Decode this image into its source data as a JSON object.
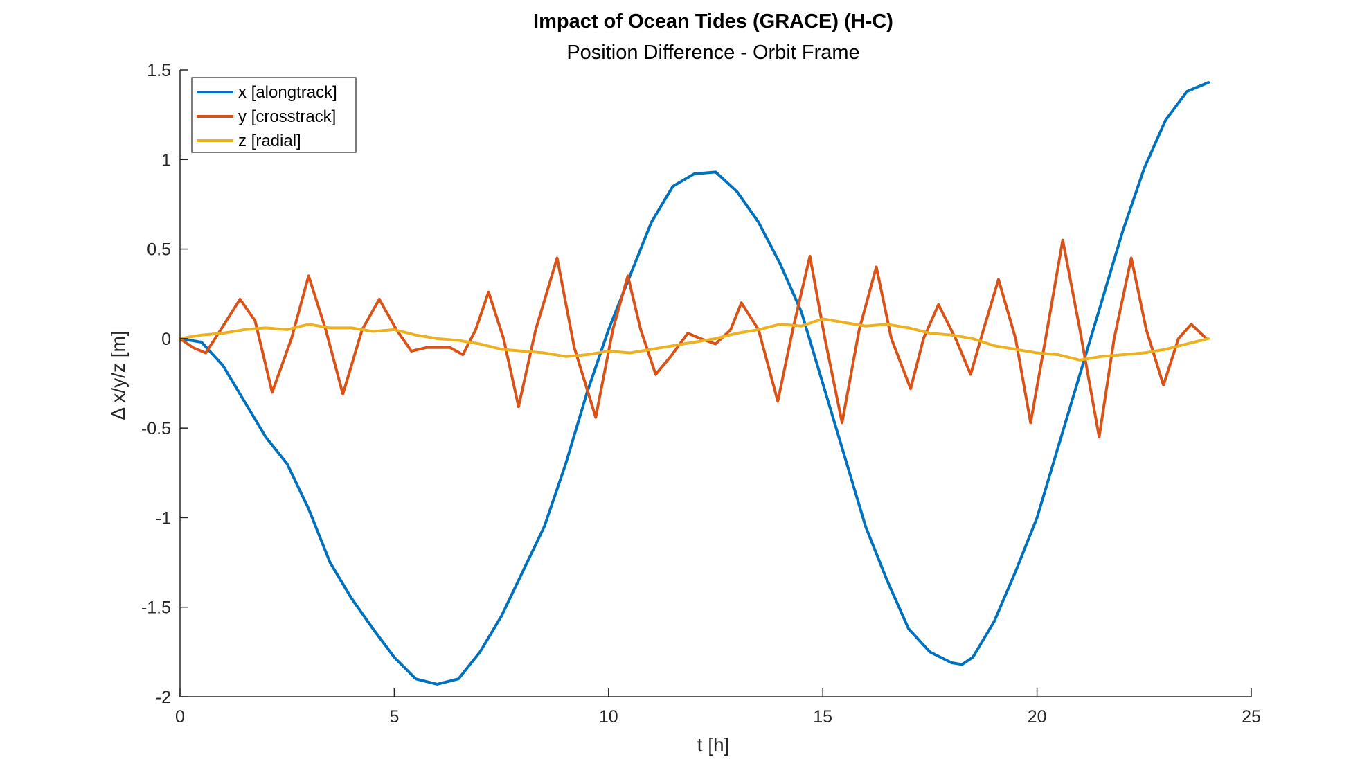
{
  "chart_data": {
    "type": "line",
    "title": "Impact of Ocean Tides (GRACE) (H-C)",
    "subtitle": "Position Difference - Orbit Frame",
    "xlabel": "t [h]",
    "ylabel": "Δ x/y/z [m]",
    "xlim": [
      0,
      25
    ],
    "ylim": [
      -2,
      1.5
    ],
    "xticks": [
      0,
      5,
      10,
      15,
      20,
      25
    ],
    "yticks": [
      -2,
      -1.5,
      -1,
      -0.5,
      0,
      0.5,
      1,
      1.5
    ],
    "xtick_labels": [
      "0",
      "5",
      "10",
      "15",
      "20",
      "25"
    ],
    "ytick_labels": [
      "-2",
      "-1.5",
      "-1",
      "-0.5",
      "0",
      "0.5",
      "1",
      "1.5"
    ],
    "grid": false,
    "legend_position": "top-left",
    "series": [
      {
        "name": "x [alongtrack]",
        "color": "#0072BD",
        "x": [
          0,
          0.5,
          1,
          1.5,
          2,
          2.5,
          3,
          3.5,
          4,
          4.5,
          5,
          5.5,
          6,
          6.5,
          7,
          7.5,
          8,
          8.5,
          9,
          9.5,
          10,
          10.5,
          11,
          11.5,
          12,
          12.5,
          13,
          13.5,
          14,
          14.5,
          15,
          15.5,
          16,
          16.5,
          17,
          17.5,
          18,
          18.25,
          18.5,
          19,
          19.5,
          20,
          20.5,
          21,
          21.5,
          22,
          22.5,
          23,
          23.5,
          24
        ],
        "y": [
          0,
          -0.02,
          -0.15,
          -0.35,
          -0.55,
          -0.7,
          -0.95,
          -1.25,
          -1.45,
          -1.62,
          -1.78,
          -1.9,
          -1.93,
          -1.9,
          -1.75,
          -1.55,
          -1.3,
          -1.05,
          -0.7,
          -0.3,
          0.05,
          0.35,
          0.65,
          0.85,
          0.92,
          0.93,
          0.82,
          0.65,
          0.42,
          0.15,
          -0.25,
          -0.65,
          -1.05,
          -1.35,
          -1.62,
          -1.75,
          -1.81,
          -1.82,
          -1.78,
          -1.58,
          -1.3,
          -1.0,
          -0.6,
          -0.2,
          0.2,
          0.6,
          0.95,
          1.22,
          1.38,
          1.43
        ]
      },
      {
        "name": "y [crosstrack]",
        "color": "#D95319",
        "x": [
          0,
          0.3,
          0.6,
          0.95,
          1.4,
          1.75,
          2.15,
          2.6,
          3.0,
          3.4,
          3.8,
          4.25,
          4.65,
          5.05,
          5.4,
          5.75,
          6.0,
          6.3,
          6.6,
          6.9,
          7.2,
          7.55,
          7.9,
          8.3,
          8.8,
          9.2,
          9.7,
          10.1,
          10.45,
          10.75,
          11.1,
          11.45,
          11.85,
          12.15,
          12.5,
          12.85,
          13.1,
          13.5,
          13.95,
          14.3,
          14.7,
          15.05,
          15.45,
          15.85,
          16.25,
          16.6,
          17.05,
          17.35,
          17.7,
          18.1,
          18.45,
          18.75,
          19.1,
          19.5,
          19.85,
          20.2,
          20.6,
          21.0,
          21.45,
          21.8,
          22.2,
          22.55,
          22.95,
          23.3,
          23.6,
          23.95
        ],
        "y": [
          0,
          -0.05,
          -0.08,
          0.05,
          0.22,
          0.1,
          -0.3,
          0.0,
          0.35,
          0.05,
          -0.31,
          0.05,
          0.22,
          0.05,
          -0.07,
          -0.05,
          -0.05,
          -0.05,
          -0.09,
          0.05,
          0.26,
          0.0,
          -0.38,
          0.05,
          0.45,
          -0.05,
          -0.44,
          0.05,
          0.35,
          0.05,
          -0.2,
          -0.1,
          0.03,
          0.0,
          -0.03,
          0.05,
          0.2,
          0.05,
          -0.35,
          0.05,
          0.46,
          0.0,
          -0.47,
          0.05,
          0.4,
          0.0,
          -0.28,
          0.0,
          0.19,
          0.0,
          -0.2,
          0.05,
          0.33,
          0.0,
          -0.47,
          0.0,
          0.55,
          0.05,
          -0.55,
          0.0,
          0.45,
          0.05,
          -0.26,
          0.0,
          0.08,
          0.0
        ]
      },
      {
        "name": "z [radial]",
        "color": "#EDB120",
        "x": [
          0,
          0.5,
          1,
          1.5,
          2,
          2.5,
          3,
          3.5,
          4,
          4.5,
          5,
          5.5,
          6,
          6.5,
          7,
          7.5,
          8,
          8.5,
          9,
          9.5,
          10,
          10.5,
          11,
          11.5,
          12,
          12.5,
          13,
          13.5,
          14,
          14.5,
          15,
          15.5,
          16,
          16.5,
          17,
          17.5,
          18,
          18.5,
          19,
          19.5,
          20,
          20.5,
          21,
          21.5,
          22,
          22.5,
          23,
          23.5,
          24
        ],
        "y": [
          0,
          0.02,
          0.03,
          0.05,
          0.06,
          0.05,
          0.08,
          0.06,
          0.06,
          0.04,
          0.05,
          0.02,
          0.0,
          -0.01,
          -0.03,
          -0.06,
          -0.07,
          -0.08,
          -0.1,
          -0.09,
          -0.07,
          -0.08,
          -0.06,
          -0.04,
          -0.02,
          0.0,
          0.03,
          0.05,
          0.08,
          0.07,
          0.11,
          0.09,
          0.07,
          0.08,
          0.06,
          0.03,
          0.02,
          0.0,
          -0.04,
          -0.06,
          -0.08,
          -0.09,
          -0.12,
          -0.1,
          -0.09,
          -0.08,
          -0.06,
          -0.03,
          0.0
        ]
      }
    ]
  }
}
